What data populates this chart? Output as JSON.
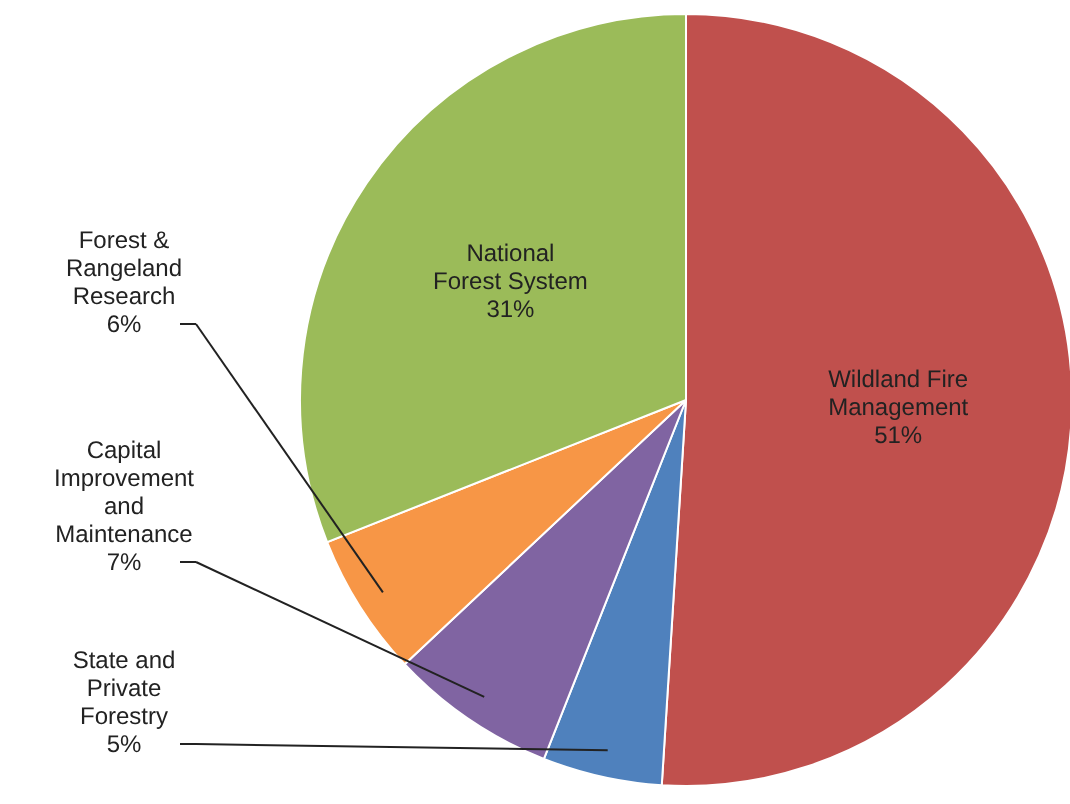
{
  "chart_data": {
    "type": "pie",
    "categories": [
      "Wildland Fire Management",
      "State and Private Forestry",
      "Capital Improvement and Maintenance",
      "Forest & Rangeland Research",
      "National Forest System"
    ],
    "values": [
      51,
      5,
      7,
      6,
      31
    ],
    "value_labels": [
      "51%",
      "5%",
      "7%",
      "6%",
      "31%"
    ],
    "colors": [
      "#c0504d",
      "#4f81bd",
      "#8064a2",
      "#f79646",
      "#9bbb59"
    ]
  }
}
